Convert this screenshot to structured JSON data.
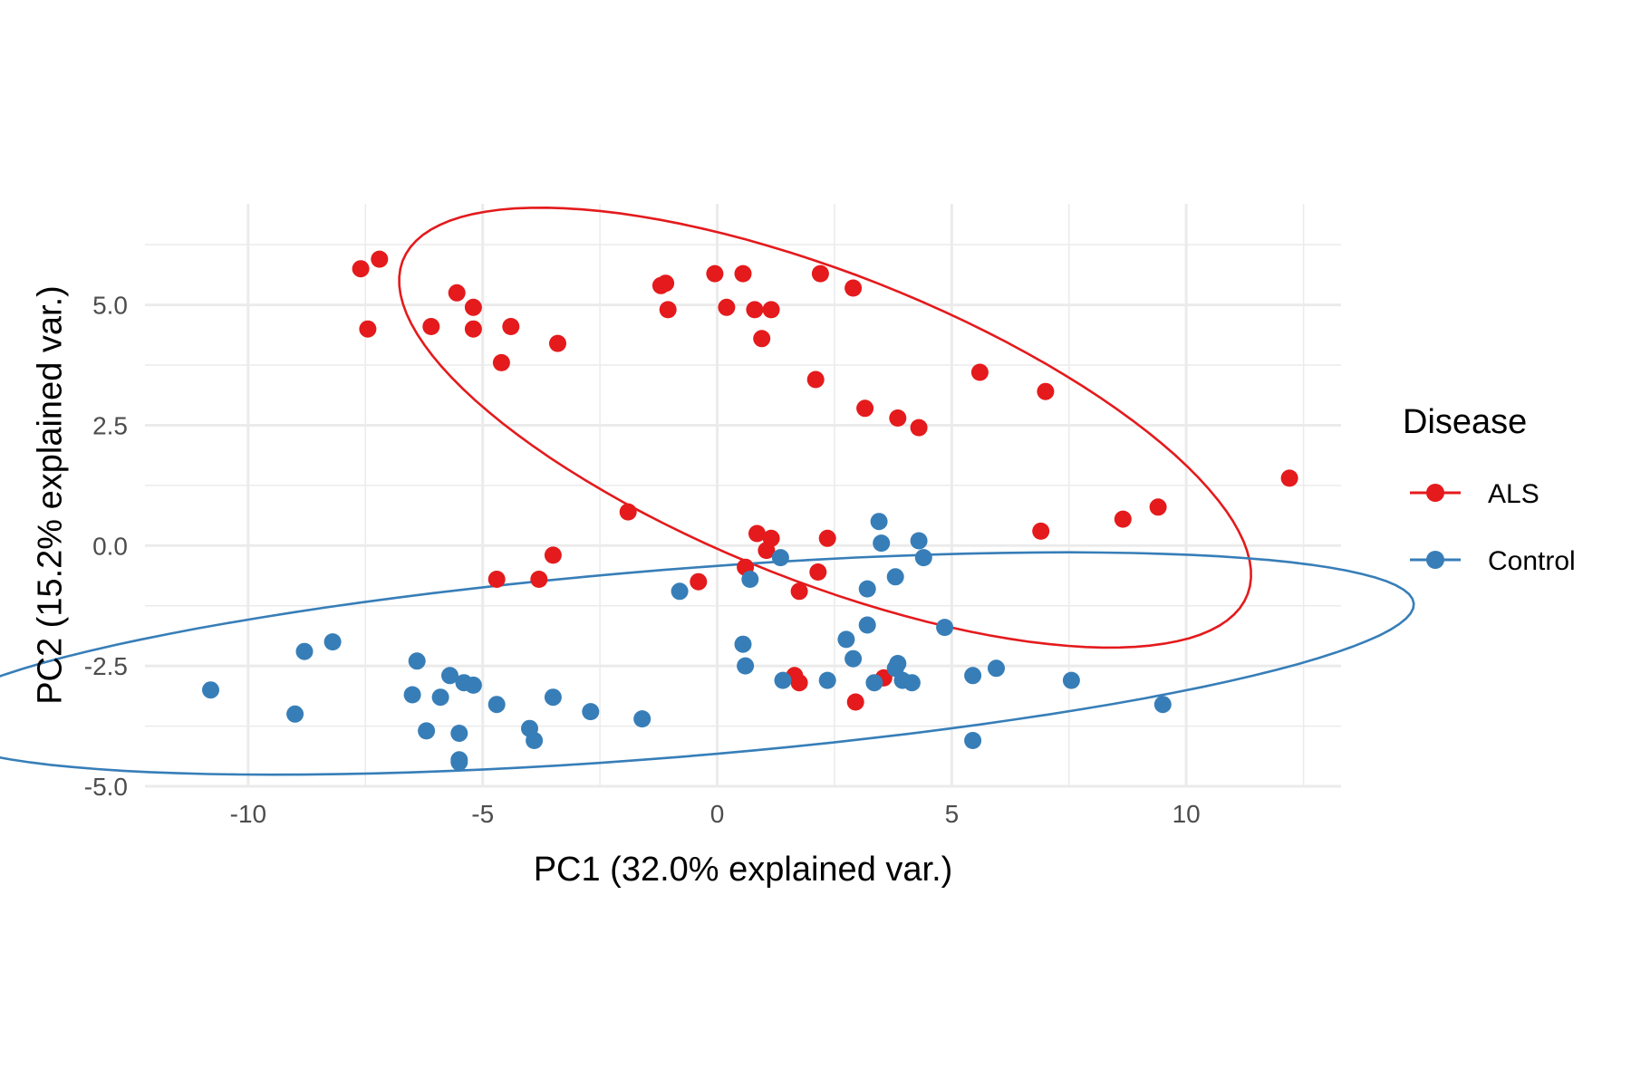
{
  "chart_data": {
    "type": "scatter",
    "title": "",
    "xlabel": "PC1 (32.0% explained var.)",
    "ylabel": "PC2 (15.2% explained var.)",
    "xlim": [
      -12.2,
      13.3
    ],
    "ylim": [
      -5.0,
      7.1
    ],
    "x_ticks": [
      -10,
      -5,
      0,
      5,
      10
    ],
    "x_tick_labels": [
      "-10",
      "-5",
      "0",
      "5",
      "10"
    ],
    "y_ticks": [
      -5.0,
      -2.5,
      0.0,
      2.5,
      5.0
    ],
    "y_tick_labels": [
      "-5.0",
      "-2.5",
      "0.0",
      "2.5",
      "5.0"
    ],
    "grid": true,
    "legend": {
      "title": "Disease",
      "position": "right"
    },
    "series": [
      {
        "name": "ALS",
        "color": "#E41A1C",
        "points": [
          [
            -7.6,
            5.75
          ],
          [
            -7.2,
            5.95
          ],
          [
            -7.45,
            4.5
          ],
          [
            -6.1,
            4.55
          ],
          [
            -5.55,
            5.25
          ],
          [
            -5.2,
            4.95
          ],
          [
            -5.2,
            4.5
          ],
          [
            -4.4,
            4.55
          ],
          [
            -4.6,
            3.8
          ],
          [
            -3.4,
            4.2
          ],
          [
            -1.2,
            5.4
          ],
          [
            -1.1,
            5.45
          ],
          [
            -1.05,
            4.9
          ],
          [
            -0.05,
            5.65
          ],
          [
            0.2,
            4.95
          ],
          [
            0.55,
            5.65
          ],
          [
            0.8,
            4.9
          ],
          [
            1.15,
            4.9
          ],
          [
            0.95,
            4.3
          ],
          [
            2.2,
            5.65
          ],
          [
            2.9,
            5.35
          ],
          [
            2.1,
            3.45
          ],
          [
            3.15,
            2.85
          ],
          [
            3.85,
            2.65
          ],
          [
            4.3,
            2.45
          ],
          [
            5.6,
            3.6
          ],
          [
            7.0,
            3.2
          ],
          [
            12.2,
            1.4
          ],
          [
            9.4,
            0.8
          ],
          [
            8.65,
            0.55
          ],
          [
            6.9,
            0.3
          ],
          [
            -1.9,
            0.7
          ],
          [
            -3.5,
            -0.2
          ],
          [
            -4.7,
            -0.7
          ],
          [
            -3.8,
            -0.7
          ],
          [
            0.85,
            0.25
          ],
          [
            1.15,
            0.15
          ],
          [
            2.35,
            0.15
          ],
          [
            1.05,
            -0.1
          ],
          [
            0.6,
            -0.45
          ],
          [
            2.15,
            -0.55
          ],
          [
            -0.4,
            -0.75
          ],
          [
            1.75,
            -0.95
          ],
          [
            1.65,
            -2.7
          ],
          [
            1.75,
            -2.85
          ],
          [
            3.55,
            -2.75
          ],
          [
            2.95,
            -3.25
          ]
        ]
      },
      {
        "name": "Control",
        "color": "#377EB8",
        "points": [
          [
            -10.8,
            -3.0
          ],
          [
            -9.0,
            -3.5
          ],
          [
            -8.8,
            -2.2
          ],
          [
            -8.2,
            -2.0
          ],
          [
            -6.5,
            -3.1
          ],
          [
            -6.4,
            -2.4
          ],
          [
            -6.2,
            -3.85
          ],
          [
            -5.9,
            -3.15
          ],
          [
            -5.7,
            -2.7
          ],
          [
            -5.4,
            -2.85
          ],
          [
            -5.5,
            -3.9
          ],
          [
            -5.5,
            -4.5
          ],
          [
            -5.5,
            -4.45
          ],
          [
            -5.2,
            -2.9
          ],
          [
            -4.7,
            -3.3
          ],
          [
            -4.0,
            -3.8
          ],
          [
            -3.9,
            -4.05
          ],
          [
            -3.5,
            -3.15
          ],
          [
            -2.7,
            -3.45
          ],
          [
            -1.6,
            -3.6
          ],
          [
            -0.8,
            -0.95
          ],
          [
            0.55,
            -2.05
          ],
          [
            0.6,
            -2.5
          ],
          [
            0.7,
            -0.7
          ],
          [
            1.35,
            -0.25
          ],
          [
            1.4,
            -2.8
          ],
          [
            2.35,
            -2.8
          ],
          [
            2.75,
            -1.95
          ],
          [
            2.9,
            -2.35
          ],
          [
            3.2,
            -0.9
          ],
          [
            3.2,
            -1.65
          ],
          [
            3.35,
            -2.85
          ],
          [
            3.45,
            0.5
          ],
          [
            3.5,
            0.05
          ],
          [
            3.8,
            -0.65
          ],
          [
            3.8,
            -2.55
          ],
          [
            3.85,
            -2.45
          ],
          [
            3.95,
            -2.8
          ],
          [
            4.15,
            -2.85
          ],
          [
            4.3,
            0.1
          ],
          [
            4.4,
            -0.25
          ],
          [
            4.85,
            -1.7
          ],
          [
            5.45,
            -2.7
          ],
          [
            5.45,
            -4.05
          ],
          [
            5.95,
            -2.55
          ],
          [
            7.55,
            -2.8
          ],
          [
            9.5,
            -3.3
          ]
        ]
      }
    ],
    "ellipses": [
      {
        "series": "ALS",
        "center": [
          2.3,
          2.45
        ],
        "semi_axes": [
          9.65,
          3.2
        ],
        "angle_deg": -21
      },
      {
        "series": "Control",
        "center": [
          -1.0,
          -2.45
        ],
        "semi_axes": [
          15.9,
          1.95
        ],
        "angle_deg": 4.5
      }
    ]
  }
}
